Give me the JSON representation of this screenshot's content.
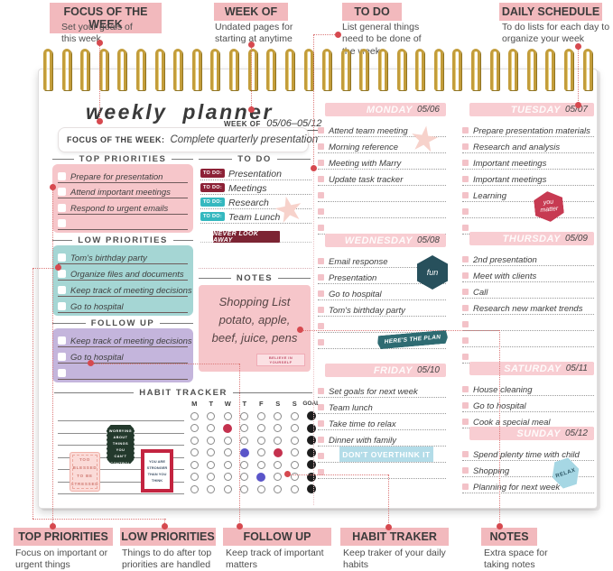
{
  "colors": {
    "callout_pink": "#f2b9bd",
    "block_pink": "#f6c6ca",
    "block_teal": "#a5d6d4",
    "block_purple": "#c4b5dc",
    "tag_maroon": "#8c2136",
    "tag_teal": "#35b8bf",
    "banner_maroon": "#7c2433",
    "banner_teal": "#2e6b72",
    "banner_lightblue": "#b3dce8",
    "hex_red": "#c73a52",
    "hex_darkteal": "#27505c",
    "hex_lightblue": "#a6d7e4",
    "habit_red": "#c4314e",
    "habit_blue": "#5a55c9",
    "spiral_gold": "#c39d3b"
  },
  "callouts_top": [
    {
      "label": "FOCUS OF THE WEEK",
      "desc": "Set your goals of this week"
    },
    {
      "label": "WEEK OF",
      "desc": "Undated pages for starting at anytime"
    },
    {
      "label": "TO DO",
      "desc": "List general things need to be done of the week"
    },
    {
      "label": "DAILY SCHEDULE",
      "desc": "To do lists for each day to organize your week"
    }
  ],
  "callouts_bottom": [
    {
      "label": "TOP PRIORITIES",
      "desc": "Focus on important or urgent things"
    },
    {
      "label": "LOW PRIORITIES",
      "desc": "Things to do after top priorities are handled"
    },
    {
      "label": "FOLLOW UP",
      "desc": "Keep track of important matters"
    },
    {
      "label": "HABIT TRAKER",
      "desc": "Keep traker of your daily habits"
    },
    {
      "label": "NOTES",
      "desc": "Extra space for taking notes"
    }
  ],
  "planner": {
    "title": "weekly planner",
    "week_of_label": "WEEK OF",
    "week_of_value": "05/06–05/12",
    "focus_label": "FOCUS OF THE WEEK:",
    "focus_value": "Complete quarterly presentation",
    "top_priorities": {
      "title": "TOP PRIORITIES",
      "items": [
        "Prepare for presentation",
        "Attend important meetings",
        "Respond to urgent emails",
        ""
      ]
    },
    "low_priorities": {
      "title": "LOW PRIORITIES",
      "items": [
        "Tom's birthday party",
        "Organize files and documents",
        "Keep track of meeting decisions",
        "Go to hospital"
      ]
    },
    "follow_up": {
      "title": "FOLLOW UP",
      "items": [
        "Keep track of meeting decisions",
        "Go to hospital",
        ""
      ]
    },
    "todo": {
      "title": "TO DO",
      "banner": "NEVER LOOK AWAY",
      "items": [
        {
          "tag": "TO DO:",
          "color": "maroon",
          "text": "Presentation"
        },
        {
          "tag": "TO DO:",
          "color": "maroon",
          "text": "Meetings"
        },
        {
          "tag": "TO DO:",
          "color": "teal",
          "text": "Research"
        },
        {
          "tag": "TO DO:",
          "color": "teal",
          "text": "Team Lunch"
        }
      ]
    },
    "notes": {
      "title": "NOTES",
      "lines": [
        "Shopping List",
        "potato, apple,",
        "beef, juice, pens"
      ],
      "sticker": "BELIEVE IN YOURSELF"
    },
    "habit": {
      "title": "HABIT TRACKER",
      "columns": [
        "M",
        "T",
        "W",
        "T",
        "F",
        "S",
        "S",
        "GOAL"
      ],
      "rows": 7,
      "marks": [
        {
          "row": 1,
          "col": 2,
          "color": "red"
        },
        {
          "row": 3,
          "col": 3,
          "color": "blue"
        },
        {
          "row": 3,
          "col": 5,
          "color": "red"
        },
        {
          "row": 5,
          "col": 4,
          "color": "blue"
        }
      ],
      "stickers": [
        "TOO BLESSED TO BE STRESSED",
        "STOP WORRYING ABOUT THINGS YOU CAN'T CONTROL",
        "YOU ARE STRONGER THAN YOU THINK"
      ]
    },
    "days": [
      {
        "name": "MONDAY",
        "date": "05/06",
        "items": [
          "Attend team meeting",
          "Morning reference",
          "Meeting with Marry",
          "Update task tracker"
        ],
        "empty_lines": 3
      },
      {
        "name": "TUESDAY",
        "date": "05/07",
        "items": [
          "Prepare presentation materials",
          "Research and analysis",
          "Important meetings",
          "Important meetings",
          "Learning"
        ],
        "empty_lines": 2,
        "badge": {
          "text": "you matter",
          "kind": "hex-red"
        }
      },
      {
        "name": "WEDNESDAY",
        "date": "05/08",
        "items": [
          "Email response",
          "Presentation",
          "Go to hospital",
          "Tom's birthday party"
        ],
        "empty_lines": 2,
        "badge": {
          "text": "fun",
          "kind": "hex-teal"
        },
        "banner": {
          "text": "HERE'S THE PLAN",
          "kind": "ribbon-teal"
        }
      },
      {
        "name": "THURSDAY",
        "date": "05/09",
        "items": [
          "2nd presentation",
          "Meet with clients",
          "Call",
          "Research new market trends"
        ],
        "empty_lines": 3
      },
      {
        "name": "FRIDAY",
        "date": "05/10",
        "items": [
          "Set goals for next week",
          "Team lunch",
          "Take time to relax",
          "Dinner with family"
        ],
        "empty_lines": 2,
        "banner": {
          "text": "DON'T OVERTHINK IT",
          "kind": "bar-blue"
        }
      },
      {
        "name": "SATURDAY",
        "date": "05/11",
        "items": [
          "House cleaning",
          "Go to hospital",
          "Cook a special meal"
        ],
        "empty_lines": 0
      },
      {
        "name": "SUNDAY",
        "date": "05/12",
        "items": [
          "Spend plenty time with child",
          "Shopping",
          "Planning for next week"
        ],
        "empty_lines": 0,
        "badge": {
          "text": "RELAX",
          "kind": "hex-blue"
        }
      }
    ]
  }
}
